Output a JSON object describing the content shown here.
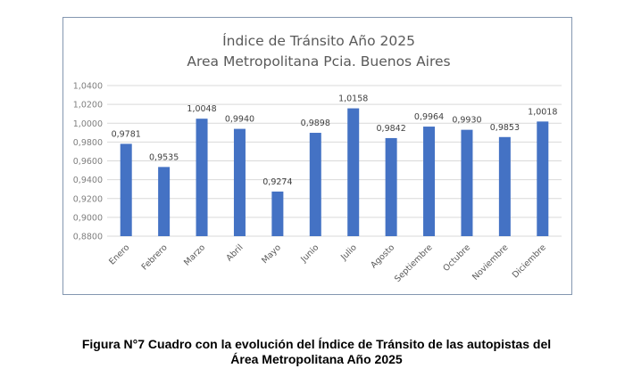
{
  "chart_data": {
    "type": "bar",
    "title": [
      "Índice de Tránsito Año 2025",
      "Area Metropolitana Pcia. Buenos Aires"
    ],
    "categories": [
      "Enero",
      "Febrero",
      "Marzo",
      "Abril",
      "Mayo",
      "Junio",
      "Julio",
      "Agosto",
      "Septiembre",
      "Octubre",
      "Noviembre",
      "Diciembre"
    ],
    "values": [
      0.9781,
      0.9535,
      1.0048,
      0.994,
      0.9274,
      0.9898,
      1.0158,
      0.9842,
      0.9964,
      0.993,
      0.9853,
      1.0018
    ],
    "data_labels": [
      "0,9781",
      "0,9535",
      "1,0048",
      "0,9940",
      "0,9274",
      "0,9898",
      "1,0158",
      "0,9842",
      "0,9964",
      "0,9930",
      "0,9853",
      "1,0018"
    ],
    "yticks": [
      0.88,
      0.9,
      0.92,
      0.94,
      0.96,
      0.98,
      1.0,
      1.02,
      1.04
    ],
    "ytick_labels": [
      "0,8800",
      "0,9000",
      "0,9200",
      "0,9400",
      "0,9600",
      "0,9800",
      "1,0000",
      "1,0200",
      "1,0400"
    ],
    "ylim": [
      0.88,
      1.04
    ],
    "xlabel": "",
    "ylabel": "",
    "grid": true,
    "legend": "none",
    "colors": {
      "bar": "#4472c4",
      "grid": "#d9d9d9",
      "frame": "#8497b0"
    }
  },
  "caption": {
    "line1": "Figura N°7 Cuadro con la evolución del Índice de Tránsito de las autopistas del",
    "line2": "Área Metropolitana Año 2025"
  }
}
